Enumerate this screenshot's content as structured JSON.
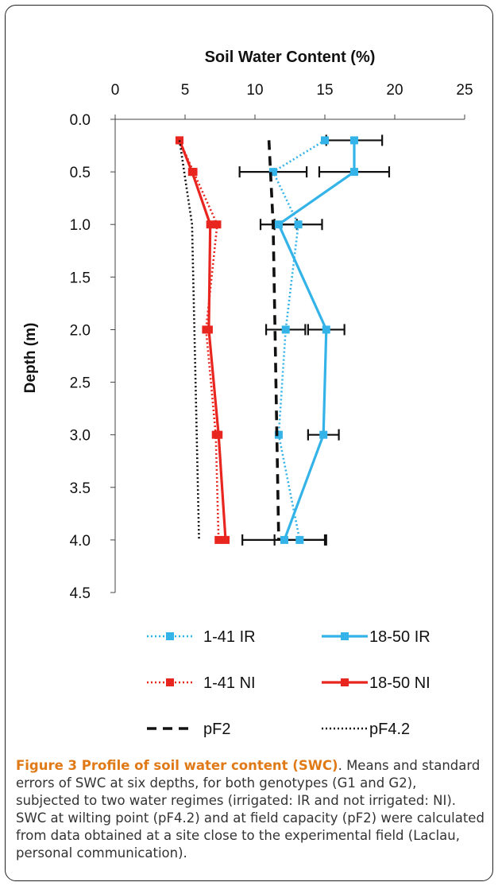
{
  "chart_data": {
    "type": "line",
    "title": "Soil Water Content (%)",
    "xlabel": "Soil Water Content (%)",
    "ylabel": "Depth (m)",
    "xlim": [
      0,
      25
    ],
    "ylim": [
      0,
      4.5
    ],
    "x_ticks": [
      "0",
      "5",
      "10",
      "15",
      "20",
      "25"
    ],
    "y_ticks": [
      "0.0",
      "0.5",
      "1.0",
      "1.5",
      "2.0",
      "2.5",
      "3.0",
      "3.5",
      "4.0",
      "4.5"
    ],
    "x_axis_position": "top",
    "y_axis_inverted": true,
    "grid": false,
    "legend_position": "bottom",
    "series": [
      {
        "name": "1-41 IR",
        "color": "#33b3e8",
        "line_style": "dotted",
        "marker": "square",
        "points": [
          {
            "depth": 0.2,
            "swc": 15.0,
            "err": 0
          },
          {
            "depth": 0.5,
            "swc": 11.3,
            "err": 2.4
          },
          {
            "depth": 1.0,
            "swc": 13.1,
            "err": 1.7
          },
          {
            "depth": 2.0,
            "swc": 12.2,
            "err": 1.4
          },
          {
            "depth": 3.0,
            "swc": 11.7,
            "err": 0
          },
          {
            "depth": 4.0,
            "swc": 13.2,
            "err": 1.8
          }
        ]
      },
      {
        "name": "18-50 IR",
        "color": "#33b3e8",
        "line_style": "solid",
        "marker": "square",
        "points": [
          {
            "depth": 0.2,
            "swc": 17.1,
            "err": 2.0
          },
          {
            "depth": 0.5,
            "swc": 17.1,
            "err": 2.5
          },
          {
            "depth": 1.0,
            "swc": 11.7,
            "err": 1.3
          },
          {
            "depth": 2.0,
            "swc": 15.1,
            "err": 1.3
          },
          {
            "depth": 3.0,
            "swc": 14.9,
            "err": 1.1
          },
          {
            "depth": 4.0,
            "swc": 12.1,
            "err": 3.0
          }
        ]
      },
      {
        "name": "1-41 NI",
        "color": "#e8251f",
        "line_style": "dotted",
        "marker": "square",
        "points": [
          {
            "depth": 0.2,
            "swc": 4.6,
            "err": 0
          },
          {
            "depth": 0.5,
            "swc": 5.6,
            "err": 0
          },
          {
            "depth": 1.0,
            "swc": 7.3,
            "err": 0
          },
          {
            "depth": 2.0,
            "swc": 6.5,
            "err": 0
          },
          {
            "depth": 3.0,
            "swc": 7.2,
            "err": 0
          },
          {
            "depth": 4.0,
            "swc": 7.4,
            "err": 0
          }
        ]
      },
      {
        "name": "18-50 NI",
        "color": "#e8251f",
        "line_style": "solid",
        "marker": "square",
        "points": [
          {
            "depth": 0.2,
            "swc": 4.6,
            "err": 0
          },
          {
            "depth": 0.5,
            "swc": 5.5,
            "err": 0
          },
          {
            "depth": 1.0,
            "swc": 6.8,
            "err": 0
          },
          {
            "depth": 2.0,
            "swc": 6.7,
            "err": 0
          },
          {
            "depth": 3.0,
            "swc": 7.4,
            "err": 0
          },
          {
            "depth": 4.0,
            "swc": 7.9,
            "err": 0
          }
        ]
      },
      {
        "name": "pF2",
        "color": "#111111",
        "line_style": "dashed",
        "marker": "none",
        "points": [
          {
            "depth": 0.2,
            "swc": 11.0
          },
          {
            "depth": 1.0,
            "swc": 11.3
          },
          {
            "depth": 4.0,
            "swc": 11.7
          }
        ]
      },
      {
        "name": "pF4.2",
        "color": "#111111",
        "line_style": "dotted",
        "marker": "none",
        "points": [
          {
            "depth": 0.2,
            "swc": 4.6
          },
          {
            "depth": 1.0,
            "swc": 5.5
          },
          {
            "depth": 4.0,
            "swc": 6.0
          }
        ]
      }
    ],
    "legend": [
      {
        "label": "1-41 IR"
      },
      {
        "label": "18-50 IR"
      },
      {
        "label": "1-41 NI"
      },
      {
        "label": "18-50 NI"
      },
      {
        "label": "pF2"
      },
      {
        "label": "pF4.2"
      }
    ]
  },
  "caption": {
    "bold": "Figure 3 Profile of soil water content (SWC)",
    "text": ". Means and standard errors of SWC at six depths, for both genotypes (G1 and G2), subjected to two water regimes (irrigated: IR and not irrigated: NI). SWC at wilting point (pF4.2) and at field capacity (pF2) were calculated from data obtained at a site close to the experimental field (Laclau, personal communication)."
  }
}
